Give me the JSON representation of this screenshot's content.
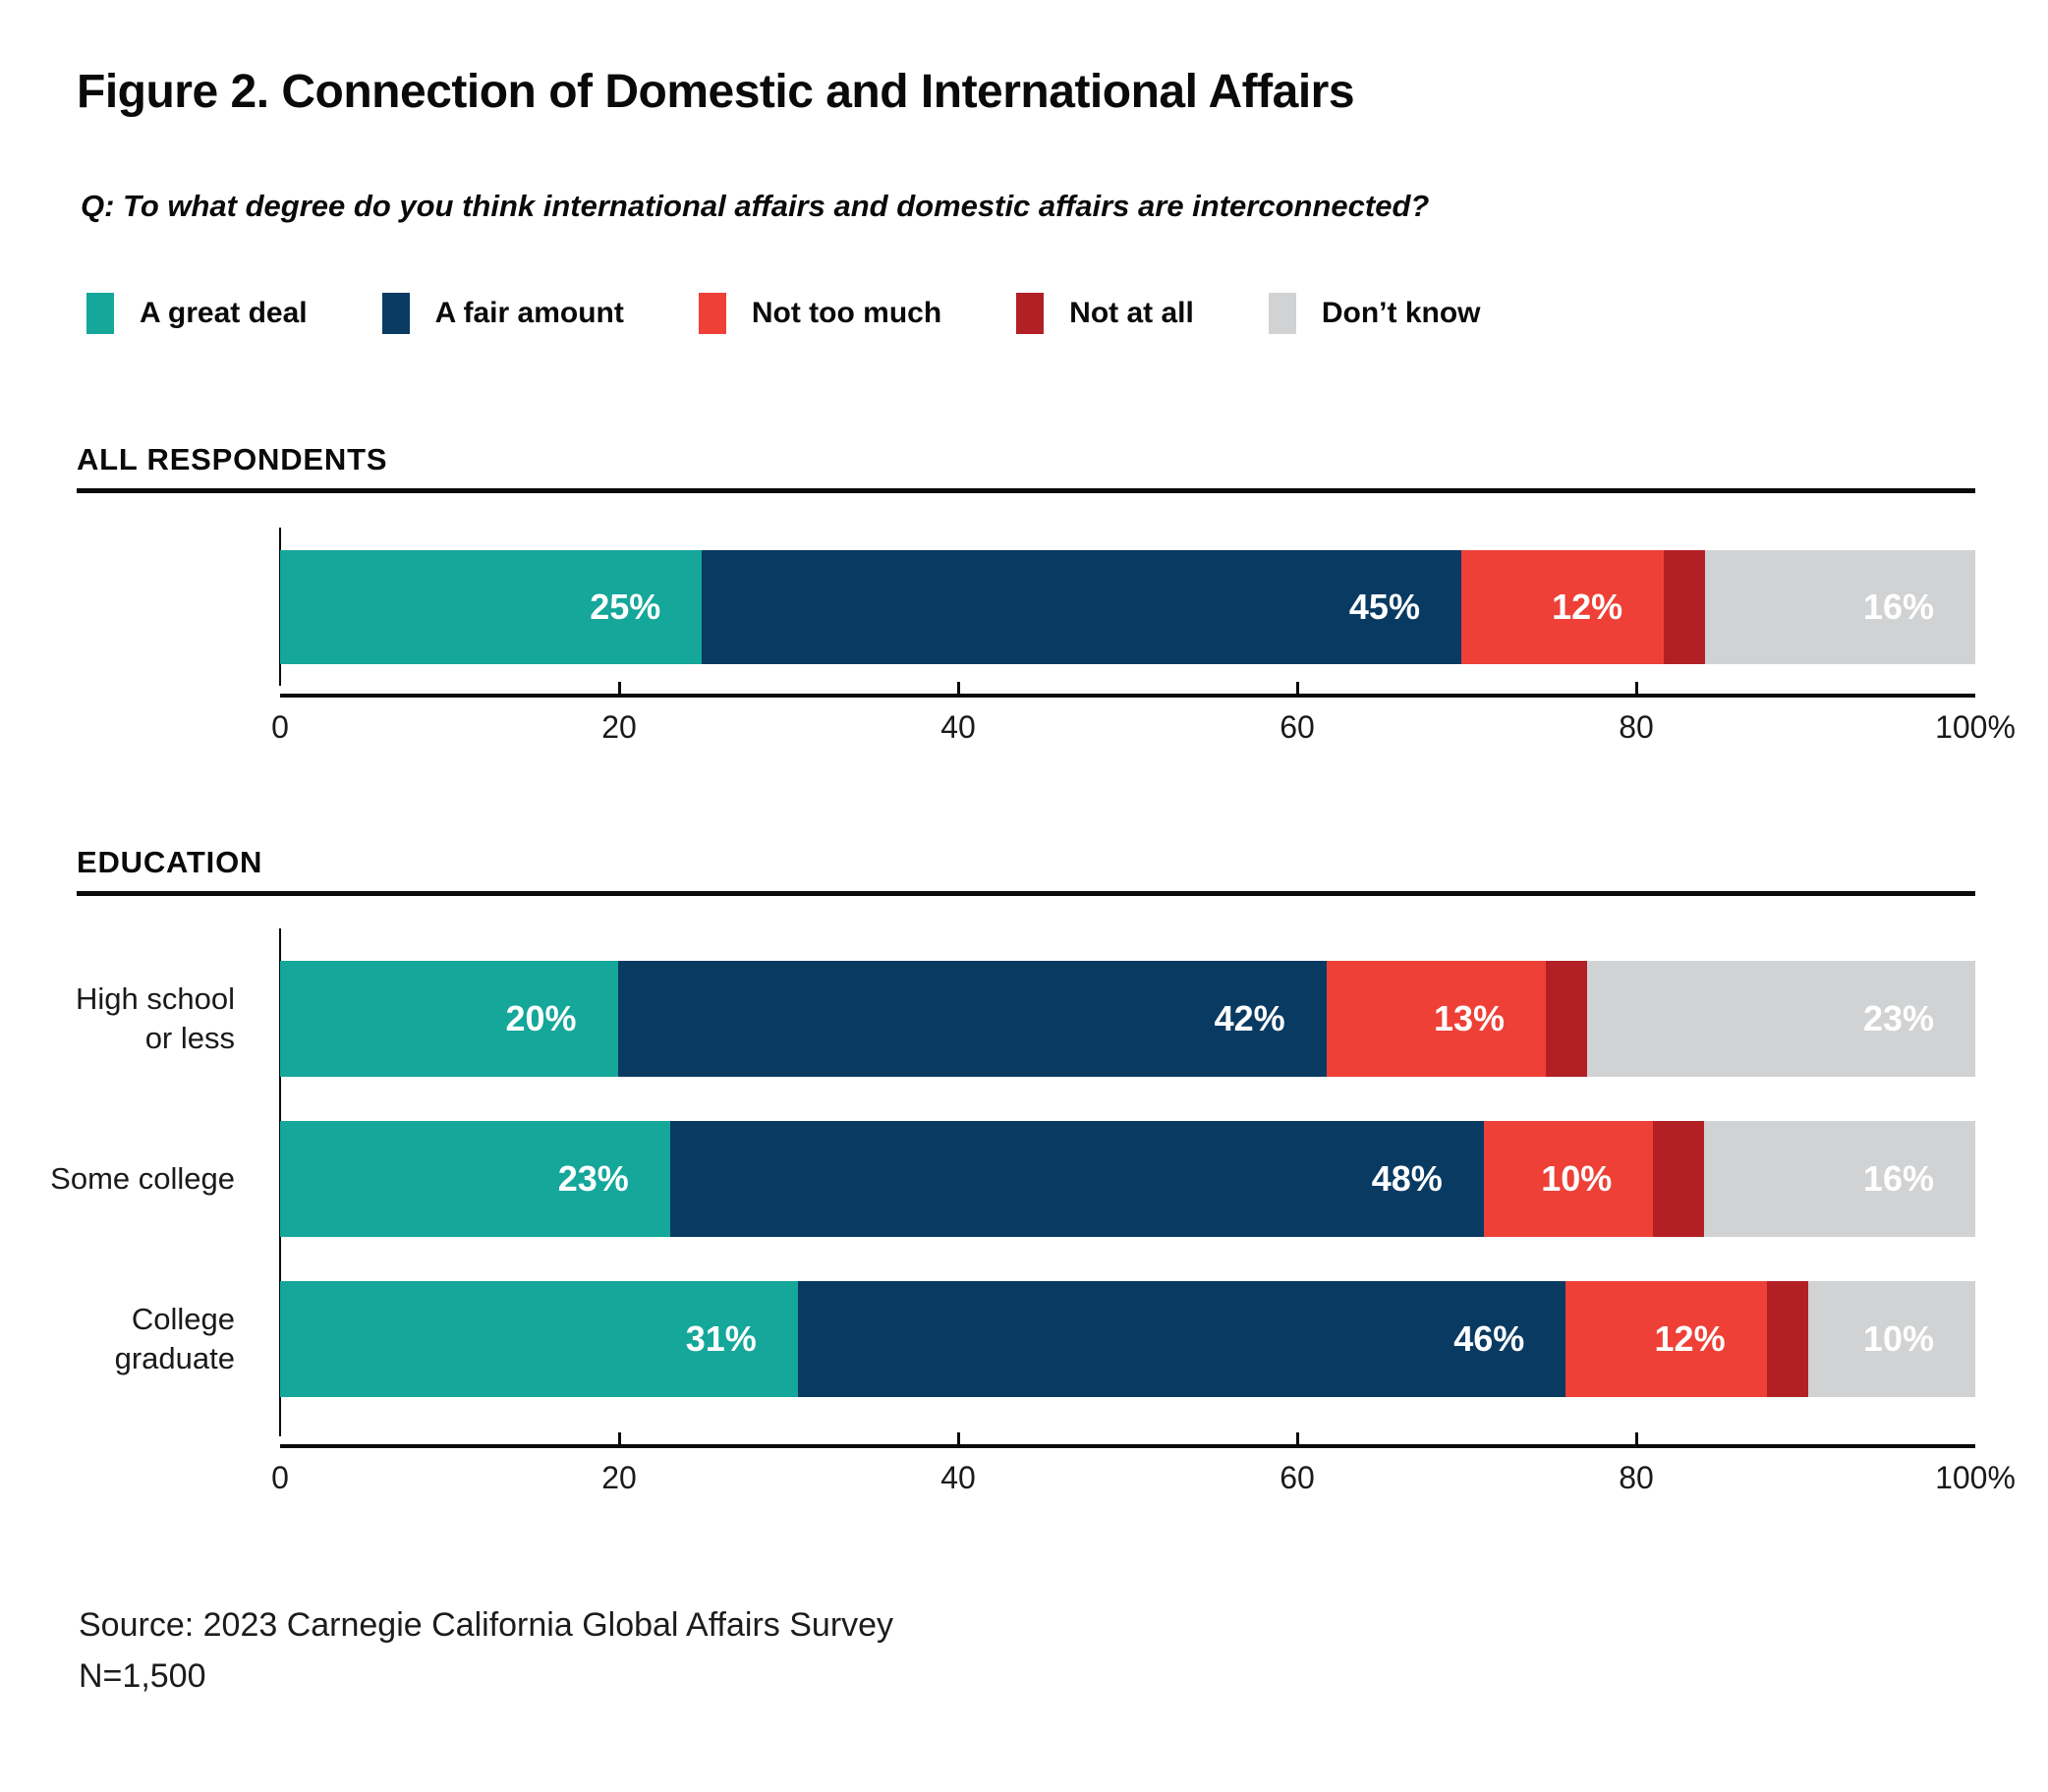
{
  "title": "Figure 2. Connection of Domestic and International Affairs",
  "question": "Q: To what degree do you think international affairs and domestic affairs are interconnected?",
  "legend": {
    "items": [
      {
        "label": "A great deal",
        "color": "#14A79A"
      },
      {
        "label": "A fair amount",
        "color": "#093A62"
      },
      {
        "label": "Not too much",
        "color": "#EE4037"
      },
      {
        "label": "Not at all",
        "color": "#B22025"
      },
      {
        "label": "Don’t know",
        "color": "#D1D2D3"
      }
    ]
  },
  "chart_data": {
    "type": "bar",
    "stacked": true,
    "orientation": "horizontal",
    "unit": "%",
    "xlim": [
      0,
      100
    ],
    "x_ticks": [
      "0",
      "20",
      "40",
      "60",
      "80",
      "100%"
    ],
    "series_names": [
      "A great deal",
      "A fair amount",
      "Not too much",
      "Not at all",
      "Don’t know"
    ],
    "groups": [
      {
        "header": "ALL RESPONDENTS",
        "rows": [
          {
            "label_lines": [],
            "values": [
              25,
              45,
              12,
              2,
              16
            ],
            "display_labels": [
              "25%",
              "45%",
              "12%",
              "",
              "16%"
            ]
          }
        ]
      },
      {
        "header": "EDUCATION",
        "rows": [
          {
            "label_lines": [
              "High school",
              "or less"
            ],
            "values": [
              20,
              42,
              13,
              2,
              23
            ],
            "display_labels": [
              "20%",
              "42%",
              "13%",
              "",
              "23%"
            ]
          },
          {
            "label_lines": [
              "Some college"
            ],
            "values": [
              23,
              48,
              10,
              3,
              16
            ],
            "display_labels": [
              "23%",
              "48%",
              "10%",
              "",
              "16%"
            ]
          },
          {
            "label_lines": [
              "College",
              "graduate"
            ],
            "values": [
              31,
              46,
              12,
              1,
              10
            ],
            "display_labels": [
              "31%",
              "46%",
              "12%",
              "",
              "10%"
            ]
          }
        ]
      }
    ]
  },
  "source": "Source: 2023 Carnegie California Global Affairs Survey",
  "sample_size": "N=1,500"
}
